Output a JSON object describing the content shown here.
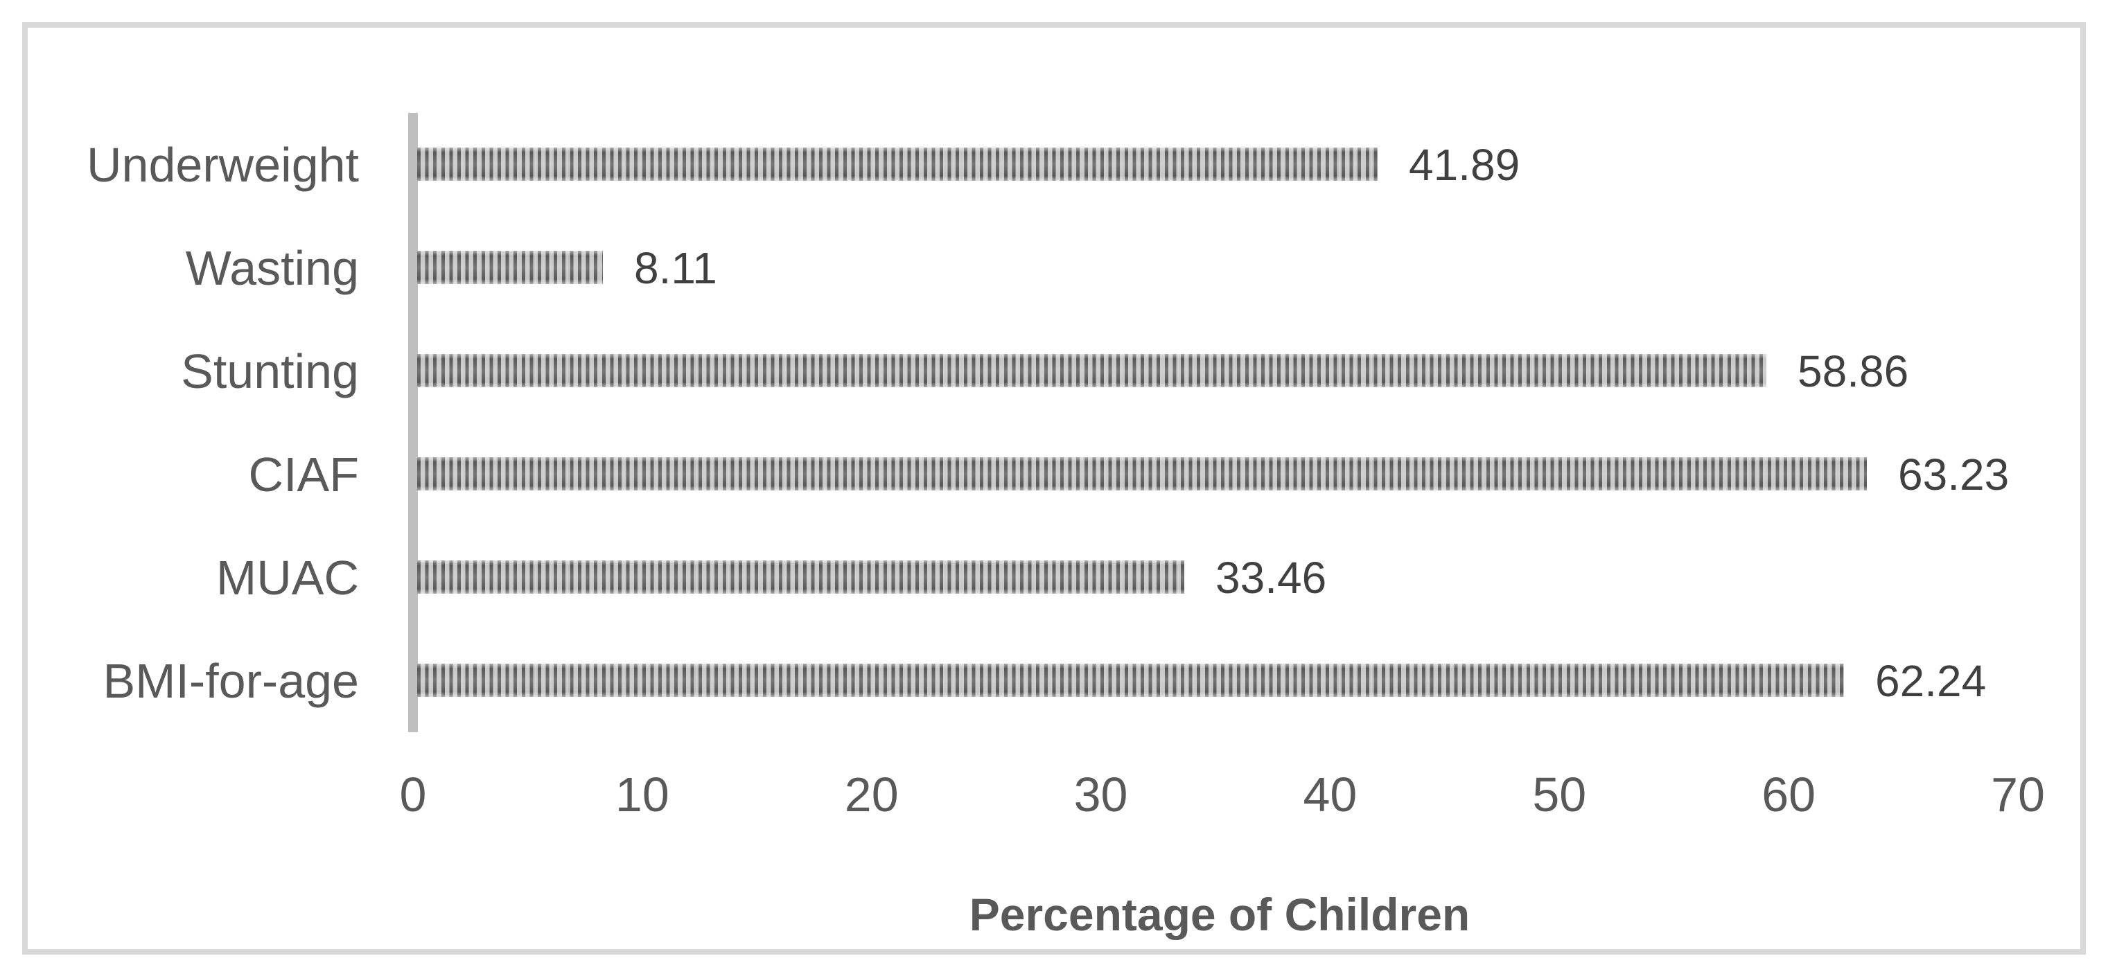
{
  "chart_data": {
    "type": "bar",
    "orientation": "horizontal",
    "title": "",
    "xlabel": "Percentage of Children",
    "ylabel": "",
    "categories": [
      "Underweight",
      "Wasting",
      "Stunting",
      "CIAF",
      "MUAC",
      "BMI-for-age"
    ],
    "values": [
      41.89,
      8.11,
      58.86,
      63.23,
      33.46,
      62.24
    ],
    "value_labels": [
      "41.89",
      "8.11",
      "58.86",
      "63.23",
      "33.46",
      "62.24"
    ],
    "xlim": [
      0,
      70
    ],
    "x_ticks": [
      0,
      10,
      20,
      30,
      40,
      50,
      60,
      70
    ],
    "grid": false,
    "legend": false,
    "bar_pattern": "vertical-stripes",
    "colors": {
      "background": "#ffffff",
      "frame_border": "#d9d9d9",
      "axis_line": "#bfbfbf",
      "stripe_dark": "#585858",
      "stripe_light": "#c6c6c6",
      "label_text": "#595959",
      "value_text": "#404040"
    }
  }
}
